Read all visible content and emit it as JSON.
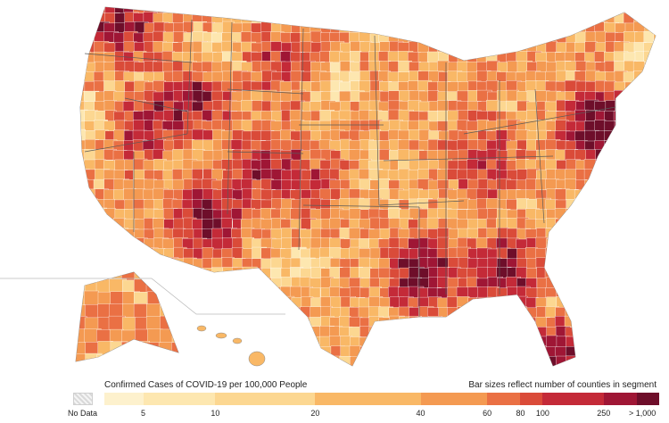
{
  "legend": {
    "title": "Confirmed Cases of COVID-19 per 100,000 People",
    "note": "Bar sizes reflect number of counties in segment",
    "no_data_label": "No Data",
    "tick_labels": [
      "5",
      "10",
      "20",
      "40",
      "60",
      "80",
      "100",
      "250",
      "> 1,000"
    ],
    "segment_colors": [
      "#fdf1cd",
      "#fde7b0",
      "#fcd791",
      "#f9b866",
      "#f49a52",
      "#ea7044",
      "#da4b39",
      "#c42a38",
      "#9f1635",
      "#6e0e2a"
    ],
    "segment_weights": [
      0.07,
      0.13,
      0.18,
      0.19,
      0.12,
      0.06,
      0.04,
      0.11,
      0.06,
      0.04
    ]
  },
  "map": {
    "no_data_color": "#efefef",
    "border_color": "#9a9a9a"
  }
}
